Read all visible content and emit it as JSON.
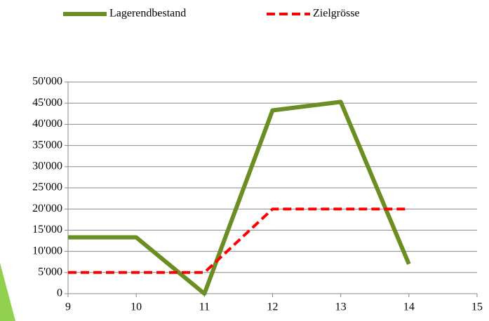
{
  "chart_data": {
    "type": "line",
    "x": [
      9,
      10,
      11,
      12,
      13,
      14
    ],
    "series": [
      {
        "name": "Lagerendbestand",
        "color": "#6b8e23",
        "values": [
          13300,
          13300,
          0,
          43300,
          45300,
          7000
        ]
      },
      {
        "name": "Zielgrösse",
        "color": "#ff0000",
        "dashed": true,
        "values": [
          5000,
          5000,
          5000,
          20000,
          20000,
          20000
        ]
      }
    ],
    "xlim": [
      9,
      15
    ],
    "xticks": [
      9,
      10,
      11,
      12,
      13,
      14,
      15
    ],
    "ylim": [
      0,
      50000
    ],
    "yticks": [
      0,
      {
        "value": 5000,
        "label": "5'000"
      },
      {
        "value": 10000,
        "label": "10'000"
      },
      {
        "value": 15000,
        "label": "15'000"
      },
      {
        "value": 20000,
        "label": "20'000"
      },
      {
        "value": 25000,
        "label": "25'000"
      },
      {
        "value": 30000,
        "label": "30'000"
      },
      {
        "value": 35000,
        "label": "35'000"
      },
      {
        "value": 40000,
        "label": "40'000"
      },
      {
        "value": 45000,
        "label": "45'000"
      },
      {
        "value": 50000,
        "label": "50'000"
      }
    ],
    "grid": true,
    "legend": "top"
  }
}
